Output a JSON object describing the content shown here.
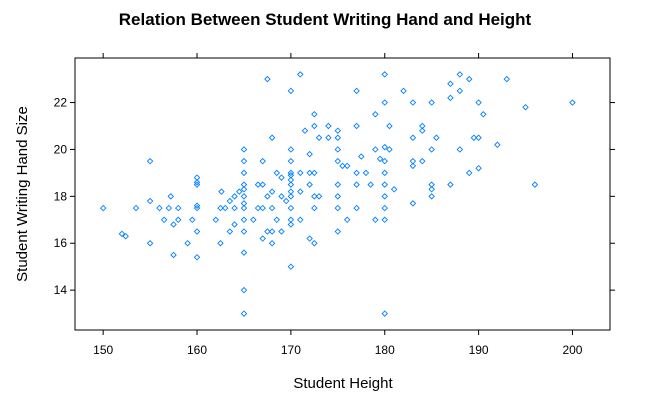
{
  "chart_data": {
    "type": "scatter",
    "title": "Relation Between Student Writing Hand and Height",
    "xlabel": "Student Height",
    "ylabel": "Student Writing Hand Size",
    "xlim": [
      147,
      204
    ],
    "ylim": [
      12.3,
      23.9
    ],
    "xticks": [
      150,
      160,
      170,
      180,
      190,
      200
    ],
    "yticks": [
      14,
      16,
      18,
      20,
      22
    ],
    "grid": false,
    "legend": "none",
    "marker": "open-diamond",
    "marker_color": "#0080ff",
    "points": [
      [
        150,
        17.5
      ],
      [
        152,
        16.4
      ],
      [
        152.4,
        16.3
      ],
      [
        153.5,
        17.5
      ],
      [
        155,
        19.5
      ],
      [
        155,
        17.8
      ],
      [
        155,
        16.0
      ],
      [
        156,
        17.5
      ],
      [
        156.5,
        17.0
      ],
      [
        157,
        17.5
      ],
      [
        157.2,
        18.0
      ],
      [
        157.5,
        16.8
      ],
      [
        157.5,
        15.5
      ],
      [
        158,
        17.5
      ],
      [
        158,
        17.0
      ],
      [
        159,
        16.0
      ],
      [
        159.5,
        17.0
      ],
      [
        160,
        18.8
      ],
      [
        160,
        18.6
      ],
      [
        160,
        18.5
      ],
      [
        160,
        17.6
      ],
      [
        160,
        17.5
      ],
      [
        160,
        16.5
      ],
      [
        160,
        15.4
      ],
      [
        162,
        17.0
      ],
      [
        162.5,
        16.0
      ],
      [
        162.5,
        17.5
      ],
      [
        162.6,
        18.2
      ],
      [
        163,
        17.5
      ],
      [
        163.5,
        16.5
      ],
      [
        163.5,
        17.8
      ],
      [
        164,
        18.0
      ],
      [
        164,
        17.5
      ],
      [
        164,
        16.8
      ],
      [
        164.5,
        18.2
      ],
      [
        165,
        20.0
      ],
      [
        165,
        19.5
      ],
      [
        165,
        19.0
      ],
      [
        165,
        18.5
      ],
      [
        165,
        18.3
      ],
      [
        165,
        18.0
      ],
      [
        165,
        17.7
      ],
      [
        165,
        17.5
      ],
      [
        165,
        17.0
      ],
      [
        165,
        16.5
      ],
      [
        165,
        15.6
      ],
      [
        165,
        14.0
      ],
      [
        165,
        13.0
      ],
      [
        166,
        17.0
      ],
      [
        166.5,
        17.5
      ],
      [
        166.5,
        18.5
      ],
      [
        167,
        19.5
      ],
      [
        167,
        18.5
      ],
      [
        167,
        17.5
      ],
      [
        167,
        16.2
      ],
      [
        167.5,
        23.0
      ],
      [
        167.5,
        18.0
      ],
      [
        167.5,
        16.5
      ],
      [
        168,
        20.5
      ],
      [
        168,
        18.2
      ],
      [
        168,
        17.5
      ],
      [
        168,
        16.0
      ],
      [
        168,
        16.5
      ],
      [
        168.5,
        19.0
      ],
      [
        168.5,
        17.0
      ],
      [
        169,
        18.8
      ],
      [
        169,
        18.0
      ],
      [
        169,
        16.5
      ],
      [
        169.5,
        17.8
      ],
      [
        170,
        20.0
      ],
      [
        170,
        19.5
      ],
      [
        170,
        19.0
      ],
      [
        170,
        18.9
      ],
      [
        170,
        18.7
      ],
      [
        170,
        18.5
      ],
      [
        170,
        18.2
      ],
      [
        170,
        18.0
      ],
      [
        170,
        17.5
      ],
      [
        170,
        17.0
      ],
      [
        170,
        16.8
      ],
      [
        170,
        15.0
      ],
      [
        170,
        22.5
      ],
      [
        171,
        23.2
      ],
      [
        171,
        19.0
      ],
      [
        171,
        18.2
      ],
      [
        171,
        17.0
      ],
      [
        171.5,
        20.8
      ],
      [
        172,
        19.8
      ],
      [
        172,
        19.0
      ],
      [
        172,
        18.5
      ],
      [
        172,
        16.2
      ],
      [
        172.5,
        21.5
      ],
      [
        172.5,
        21.0
      ],
      [
        172.5,
        19.0
      ],
      [
        172.5,
        18.0
      ],
      [
        172.5,
        17.5
      ],
      [
        172.5,
        16.0
      ],
      [
        173,
        20.5
      ],
      [
        173,
        18.0
      ],
      [
        174,
        21.0
      ],
      [
        174,
        20.5
      ],
      [
        175,
        20.8
      ],
      [
        175,
        20.5
      ],
      [
        175,
        20.0
      ],
      [
        175,
        19.5
      ],
      [
        175,
        18.5
      ],
      [
        175,
        18.0
      ],
      [
        175,
        17.5
      ],
      [
        175,
        16.5
      ],
      [
        175.5,
        19.3
      ],
      [
        176,
        19.3
      ],
      [
        176,
        17.0
      ],
      [
        177,
        22.5
      ],
      [
        177,
        21.0
      ],
      [
        177,
        19.0
      ],
      [
        177,
        18.5
      ],
      [
        177,
        17.5
      ],
      [
        177.5,
        19.7
      ],
      [
        178,
        19.0
      ],
      [
        178.5,
        18.5
      ],
      [
        179,
        21.5
      ],
      [
        179,
        20.0
      ],
      [
        179,
        17.0
      ],
      [
        179.5,
        19.6
      ],
      [
        180,
        23.2
      ],
      [
        180,
        22.0
      ],
      [
        180,
        20.1
      ],
      [
        180,
        19.5
      ],
      [
        180,
        19.0
      ],
      [
        180,
        18.5
      ],
      [
        180,
        18.0
      ],
      [
        180,
        17.5
      ],
      [
        180,
        17.0
      ],
      [
        180,
        13.0
      ],
      [
        180.5,
        20.0
      ],
      [
        180.5,
        21.0
      ],
      [
        181,
        18.3
      ],
      [
        182,
        22.5
      ],
      [
        183,
        22.0
      ],
      [
        183,
        20.5
      ],
      [
        183,
        19.5
      ],
      [
        183,
        19.3
      ],
      [
        183,
        17.7
      ],
      [
        184,
        21.0
      ],
      [
        184,
        20.8
      ],
      [
        184,
        19.5
      ],
      [
        185,
        22.0
      ],
      [
        185,
        20.0
      ],
      [
        185,
        18.5
      ],
      [
        185,
        18.3
      ],
      [
        185,
        18.0
      ],
      [
        185.5,
        20.5
      ],
      [
        187,
        22.8
      ],
      [
        187,
        18.5
      ],
      [
        187,
        22.2
      ],
      [
        188,
        23.2
      ],
      [
        188,
        22.5
      ],
      [
        188,
        20.0
      ],
      [
        189,
        23.0
      ],
      [
        189,
        19.0
      ],
      [
        189.5,
        20.5
      ],
      [
        190,
        22.0
      ],
      [
        190,
        20.5
      ],
      [
        190,
        19.2
      ],
      [
        190.5,
        21.5
      ],
      [
        192,
        20.2
      ],
      [
        193,
        23.0
      ],
      [
        195,
        21.8
      ],
      [
        196,
        18.5
      ],
      [
        200,
        22.0
      ]
    ]
  }
}
